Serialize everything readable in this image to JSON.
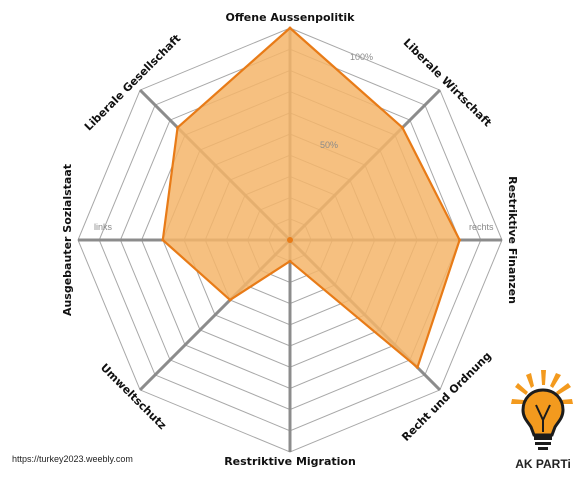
{
  "chart_data": {
    "type": "radar",
    "axes": [
      "Offene Aussenpolitik",
      "Liberale Wirtschaft",
      "Restriktive Finanzen",
      "Recht und Ordnung",
      "Restriktive Migration",
      "Umweltschutz",
      "Ausgebauter Sozialstaat",
      "Liberale Gesellschaft"
    ],
    "values": [
      100,
      75,
      80,
      85,
      10,
      40,
      60,
      75
    ],
    "rlim": [
      0,
      100
    ],
    "ring_step": 10,
    "scale_labels": [
      "100%",
      "50%"
    ],
    "side_labels": {
      "left": "links",
      "right": "rechts"
    },
    "fill_color": "#f5b56a",
    "line_color": "#e87b17",
    "grid": true
  },
  "source": "https://turkey2023.weebly.com",
  "logo": {
    "text": "AK PARTi",
    "color": "#f39a1e"
  }
}
